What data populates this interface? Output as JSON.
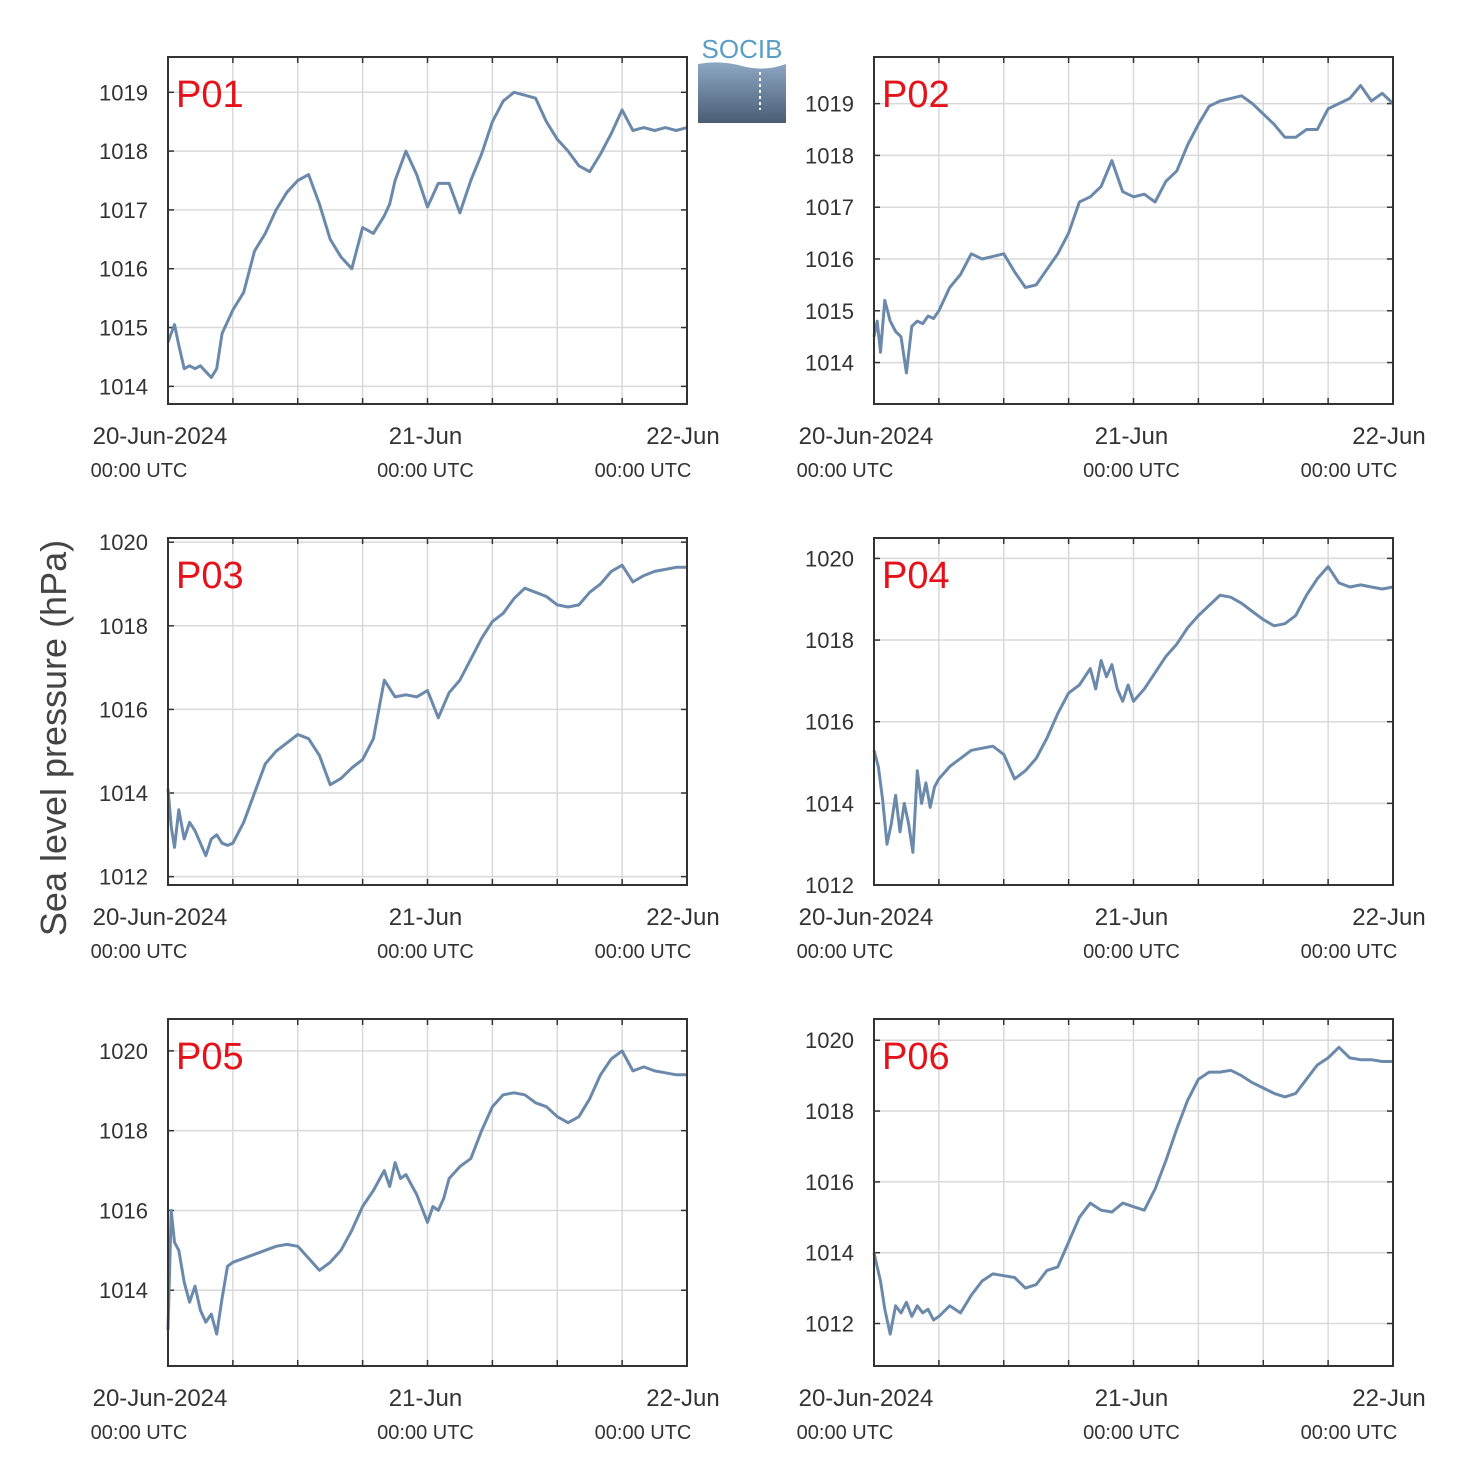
{
  "figure": {
    "ylabel": "Sea level pressure (hPa)",
    "logo_text": "SOCIB",
    "colors": {
      "line": "#6b8aab",
      "panel_label": "#e3121b",
      "grid": "#d9d9d9",
      "axis": "#333333"
    },
    "x_tick_labels": [
      "20-Jun-2024",
      "21-Jun",
      "22-Jun"
    ],
    "x_utc_labels": [
      "00:00 UTC",
      "00:00 UTC",
      "00:00 UTC"
    ]
  },
  "chart_data": [
    {
      "type": "line",
      "title": "P01",
      "x_range": [
        "2024-06-20T00:00",
        "2024-06-22T00:00"
      ],
      "ylim": [
        1013.7,
        1019.6
      ],
      "yticks": [
        1014,
        1015,
        1016,
        1017,
        1018,
        1019
      ],
      "grid": true,
      "series": [
        {
          "x_hours": [
            0,
            0.3,
            0.6,
            1,
            1.5,
            2,
            2.5,
            3,
            3.5,
            4,
            4.5,
            5,
            5.5,
            6,
            7,
            8,
            9,
            10,
            11,
            12,
            13,
            14,
            15,
            16,
            17,
            18,
            19,
            20,
            20.5,
            21,
            22,
            23,
            24,
            25,
            26,
            27,
            28,
            29,
            30,
            31,
            32,
            33,
            34,
            35,
            36,
            37,
            38,
            39,
            40,
            41,
            42,
            43,
            44,
            45,
            46,
            47,
            48
          ],
          "values": [
            1014.75,
            1014.9,
            1015.05,
            1014.7,
            1014.3,
            1014.35,
            1014.3,
            1014.35,
            1014.25,
            1014.15,
            1014.3,
            1014.9,
            1015.1,
            1015.3,
            1015.6,
            1016.3,
            1016.6,
            1017.0,
            1017.3,
            1017.5,
            1017.6,
            1017.1,
            1016.5,
            1016.2,
            1016.0,
            1016.7,
            1016.6,
            1016.9,
            1017.1,
            1017.5,
            1018.0,
            1017.6,
            1017.05,
            1017.45,
            1017.45,
            1016.95,
            1017.5,
            1017.95,
            1018.5,
            1018.85,
            1019.0,
            1018.95,
            1018.9,
            1018.5,
            1018.2,
            1018.0,
            1017.75,
            1017.65,
            1017.95,
            1018.3,
            1018.7,
            1018.35,
            1018.4,
            1018.35,
            1018.4,
            1018.35,
            1018.4
          ]
        }
      ]
    },
    {
      "type": "line",
      "title": "P02",
      "x_range": [
        "2024-06-20T00:00",
        "2024-06-22T00:00"
      ],
      "ylim": [
        1013.2,
        1019.9
      ],
      "yticks": [
        1014,
        1015,
        1016,
        1017,
        1018,
        1019
      ],
      "grid": true,
      "series": [
        {
          "x_hours": [
            0,
            0.3,
            0.6,
            1,
            1.5,
            2,
            2.5,
            3,
            3.5,
            4,
            4.5,
            5,
            5.5,
            6,
            7,
            8,
            9,
            10,
            11,
            12,
            13,
            14,
            15,
            16,
            17,
            18,
            19,
            20,
            21,
            22,
            23,
            24,
            25,
            26,
            27,
            28,
            29,
            30,
            31,
            32,
            33,
            34,
            35,
            36,
            37,
            38,
            39,
            40,
            41,
            42,
            43,
            44,
            45,
            46,
            47,
            48
          ],
          "values": [
            1014.5,
            1014.8,
            1014.2,
            1015.2,
            1014.8,
            1014.6,
            1014.5,
            1013.8,
            1014.7,
            1014.8,
            1014.75,
            1014.9,
            1014.85,
            1015.0,
            1015.45,
            1015.7,
            1016.1,
            1016.0,
            1016.05,
            1016.1,
            1015.75,
            1015.45,
            1015.5,
            1015.8,
            1016.1,
            1016.5,
            1017.1,
            1017.2,
            1017.4,
            1017.9,
            1017.3,
            1017.2,
            1017.25,
            1017.1,
            1017.5,
            1017.7,
            1018.2,
            1018.6,
            1018.95,
            1019.05,
            1019.1,
            1019.15,
            1019.0,
            1018.8,
            1018.6,
            1018.35,
            1018.35,
            1018.5,
            1018.5,
            1018.9,
            1019.0,
            1019.1,
            1019.35,
            1019.05,
            1019.2,
            1019.0
          ]
        }
      ]
    },
    {
      "type": "line",
      "title": "P03",
      "x_range": [
        "2024-06-20T00:00",
        "2024-06-22T00:00"
      ],
      "ylim": [
        1011.8,
        1020.1
      ],
      "yticks": [
        1012,
        1014,
        1016,
        1018,
        1020
      ],
      "grid": true,
      "series": [
        {
          "x_hours": [
            0,
            0.3,
            0.6,
            1,
            1.5,
            2,
            2.5,
            3,
            3.5,
            4,
            4.5,
            5,
            5.5,
            6,
            7,
            8,
            9,
            10,
            11,
            12,
            13,
            14,
            15,
            16,
            17,
            18,
            19,
            20,
            21,
            22,
            23,
            24,
            25,
            26,
            27,
            28,
            29,
            30,
            31,
            32,
            33,
            34,
            35,
            36,
            37,
            38,
            39,
            40,
            41,
            42,
            43,
            44,
            45,
            46,
            47,
            48
          ],
          "values": [
            1014.1,
            1013.2,
            1012.7,
            1013.6,
            1012.9,
            1013.3,
            1013.1,
            1012.8,
            1012.5,
            1012.9,
            1013.0,
            1012.8,
            1012.75,
            1012.8,
            1013.3,
            1014.0,
            1014.7,
            1015.0,
            1015.2,
            1015.4,
            1015.3,
            1014.9,
            1014.2,
            1014.35,
            1014.6,
            1014.8,
            1015.3,
            1016.7,
            1016.3,
            1016.35,
            1016.3,
            1016.45,
            1015.8,
            1016.4,
            1016.7,
            1017.2,
            1017.7,
            1018.1,
            1018.3,
            1018.65,
            1018.9,
            1018.8,
            1018.7,
            1018.5,
            1018.45,
            1018.5,
            1018.8,
            1019.0,
            1019.3,
            1019.45,
            1019.05,
            1019.2,
            1019.3,
            1019.35,
            1019.4,
            1019.4
          ]
        }
      ]
    },
    {
      "type": "line",
      "title": "P04",
      "x_range": [
        "2024-06-20T00:00",
        "2024-06-22T00:00"
      ],
      "ylim": [
        1012.0,
        1020.5
      ],
      "yticks": [
        1012,
        1014,
        1016,
        1018,
        1020
      ],
      "grid": true,
      "series": [
        {
          "x_hours": [
            0,
            0.4,
            0.8,
            1.2,
            1.6,
            2,
            2.4,
            2.8,
            3.2,
            3.6,
            4,
            4.4,
            4.8,
            5.2,
            5.6,
            6,
            7,
            8,
            9,
            10,
            11,
            12,
            13,
            14,
            15,
            16,
            17,
            18,
            19,
            20,
            20.5,
            21,
            21.5,
            22,
            22.5,
            23,
            23.5,
            24,
            25,
            26,
            27,
            28,
            29,
            30,
            31,
            32,
            33,
            34,
            35,
            36,
            37,
            38,
            39,
            40,
            41,
            42,
            43,
            44,
            45,
            46,
            47,
            48
          ],
          "values": [
            1015.3,
            1014.9,
            1014.1,
            1013.0,
            1013.5,
            1014.2,
            1013.3,
            1014.0,
            1013.5,
            1012.8,
            1014.8,
            1014.0,
            1014.5,
            1013.9,
            1014.4,
            1014.6,
            1014.9,
            1015.1,
            1015.3,
            1015.35,
            1015.4,
            1015.2,
            1014.6,
            1014.8,
            1015.1,
            1015.6,
            1016.2,
            1016.7,
            1016.9,
            1017.3,
            1016.8,
            1017.5,
            1017.1,
            1017.4,
            1016.8,
            1016.5,
            1016.9,
            1016.5,
            1016.8,
            1017.2,
            1017.6,
            1017.9,
            1018.3,
            1018.6,
            1018.85,
            1019.1,
            1019.05,
            1018.9,
            1018.7,
            1018.5,
            1018.35,
            1018.4,
            1018.6,
            1019.1,
            1019.5,
            1019.8,
            1019.4,
            1019.3,
            1019.35,
            1019.3,
            1019.25,
            1019.3
          ]
        }
      ]
    },
    {
      "type": "line",
      "title": "P05",
      "x_range": [
        "2024-06-20T00:00",
        "2024-06-22T00:00"
      ],
      "ylim": [
        1012.1,
        1020.8
      ],
      "yticks": [
        1014,
        1016,
        1018,
        1020
      ],
      "grid": true,
      "series": [
        {
          "x_hours": [
            0,
            0.3,
            0.6,
            1,
            1.5,
            2,
            2.5,
            3,
            3.5,
            4,
            4.5,
            5,
            5.5,
            6,
            7,
            8,
            9,
            10,
            11,
            12,
            13,
            14,
            15,
            16,
            17,
            18,
            19,
            20,
            20.5,
            21,
            21.5,
            22,
            23,
            24,
            24.5,
            25,
            25.5,
            26,
            27,
            28,
            29,
            30,
            31,
            32,
            33,
            34,
            35,
            36,
            37,
            38,
            39,
            40,
            41,
            42,
            43,
            44,
            45,
            46,
            47,
            48
          ],
          "values": [
            1013.0,
            1016.0,
            1015.2,
            1015.0,
            1014.2,
            1013.7,
            1014.1,
            1013.5,
            1013.2,
            1013.4,
            1012.9,
            1013.8,
            1014.6,
            1014.7,
            1014.8,
            1014.9,
            1015.0,
            1015.1,
            1015.15,
            1015.1,
            1014.8,
            1014.5,
            1014.7,
            1015.0,
            1015.5,
            1016.1,
            1016.5,
            1017.0,
            1016.6,
            1017.2,
            1016.8,
            1016.9,
            1016.4,
            1015.7,
            1016.1,
            1016.0,
            1016.3,
            1016.8,
            1017.1,
            1017.3,
            1018.0,
            1018.6,
            1018.9,
            1018.95,
            1018.9,
            1018.7,
            1018.6,
            1018.35,
            1018.2,
            1018.35,
            1018.8,
            1019.4,
            1019.8,
            1020.0,
            1019.5,
            1019.6,
            1019.5,
            1019.45,
            1019.4,
            1019.4
          ]
        }
      ]
    },
    {
      "type": "line",
      "title": "P06",
      "x_range": [
        "2024-06-20T00:00",
        "2024-06-22T00:00"
      ],
      "ylim": [
        1010.8,
        1020.6
      ],
      "yticks": [
        1012,
        1014,
        1016,
        1018,
        1020
      ],
      "grid": true,
      "series": [
        {
          "x_hours": [
            0,
            0.3,
            0.6,
            1,
            1.5,
            2,
            2.5,
            3,
            3.5,
            4,
            4.5,
            5,
            5.5,
            6,
            7,
            8,
            9,
            10,
            11,
            12,
            13,
            14,
            15,
            16,
            17,
            18,
            19,
            20,
            21,
            22,
            23,
            24,
            25,
            26,
            27,
            28,
            29,
            30,
            31,
            32,
            33,
            34,
            35,
            36,
            37,
            38,
            39,
            40,
            41,
            42,
            43,
            44,
            45,
            46,
            47,
            48
          ],
          "values": [
            1014.0,
            1013.6,
            1013.2,
            1012.4,
            1011.7,
            1012.5,
            1012.3,
            1012.6,
            1012.2,
            1012.5,
            1012.3,
            1012.4,
            1012.1,
            1012.2,
            1012.5,
            1012.3,
            1012.8,
            1013.2,
            1013.4,
            1013.35,
            1013.3,
            1013.0,
            1013.1,
            1013.5,
            1013.6,
            1014.3,
            1015.0,
            1015.4,
            1015.2,
            1015.15,
            1015.4,
            1015.3,
            1015.2,
            1015.8,
            1016.6,
            1017.5,
            1018.3,
            1018.9,
            1019.1,
            1019.1,
            1019.15,
            1019.0,
            1018.8,
            1018.65,
            1018.5,
            1018.4,
            1018.5,
            1018.9,
            1019.3,
            1019.5,
            1019.8,
            1019.5,
            1019.45,
            1019.45,
            1019.4,
            1019.4
          ]
        }
      ]
    }
  ]
}
